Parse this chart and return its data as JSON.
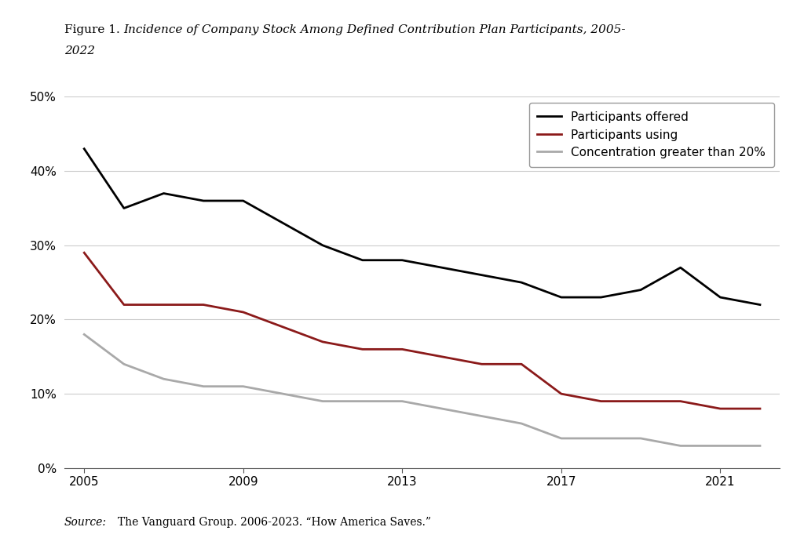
{
  "title_regular": "Figure 1. ",
  "title_italic": "Incidence of Company Stock Among Defined Contribution Plan Participants, 2005-\n2022",
  "source_italic": "Source: ",
  "source_normal": "The Vanguard Group. 2006-2023. “How America Saves.”",
  "years": [
    2005,
    2006,
    2007,
    2008,
    2009,
    2010,
    2011,
    2012,
    2013,
    2014,
    2015,
    2016,
    2017,
    2018,
    2019,
    2020,
    2021,
    2022
  ],
  "participants_offered": [
    0.43,
    0.35,
    0.37,
    0.36,
    0.36,
    0.33,
    0.3,
    0.28,
    0.28,
    0.27,
    0.26,
    0.25,
    0.23,
    0.23,
    0.24,
    0.27,
    0.23,
    0.22
  ],
  "participants_using": [
    0.29,
    0.22,
    0.22,
    0.22,
    0.21,
    0.19,
    0.17,
    0.16,
    0.16,
    0.15,
    0.14,
    0.14,
    0.1,
    0.09,
    0.09,
    0.09,
    0.08,
    0.08
  ],
  "concentration_gt20": [
    0.18,
    0.14,
    0.12,
    0.11,
    0.11,
    0.1,
    0.09,
    0.09,
    0.09,
    0.08,
    0.07,
    0.06,
    0.04,
    0.04,
    0.04,
    0.03,
    0.03,
    0.03
  ],
  "color_offered": "#000000",
  "color_using": "#8B1A1A",
  "color_concentration": "#A9A9A9",
  "ylim": [
    0,
    0.5
  ],
  "yticks": [
    0.0,
    0.1,
    0.2,
    0.3,
    0.4,
    0.5
  ],
  "xticks": [
    2005,
    2009,
    2013,
    2017,
    2021
  ],
  "legend_labels": [
    "Participants offered",
    "Participants using",
    "Concentration greater than 20%"
  ],
  "background_color": "#FFFFFF",
  "line_width": 2.0,
  "grid_color": "#CCCCCC",
  "spine_color": "#555555"
}
